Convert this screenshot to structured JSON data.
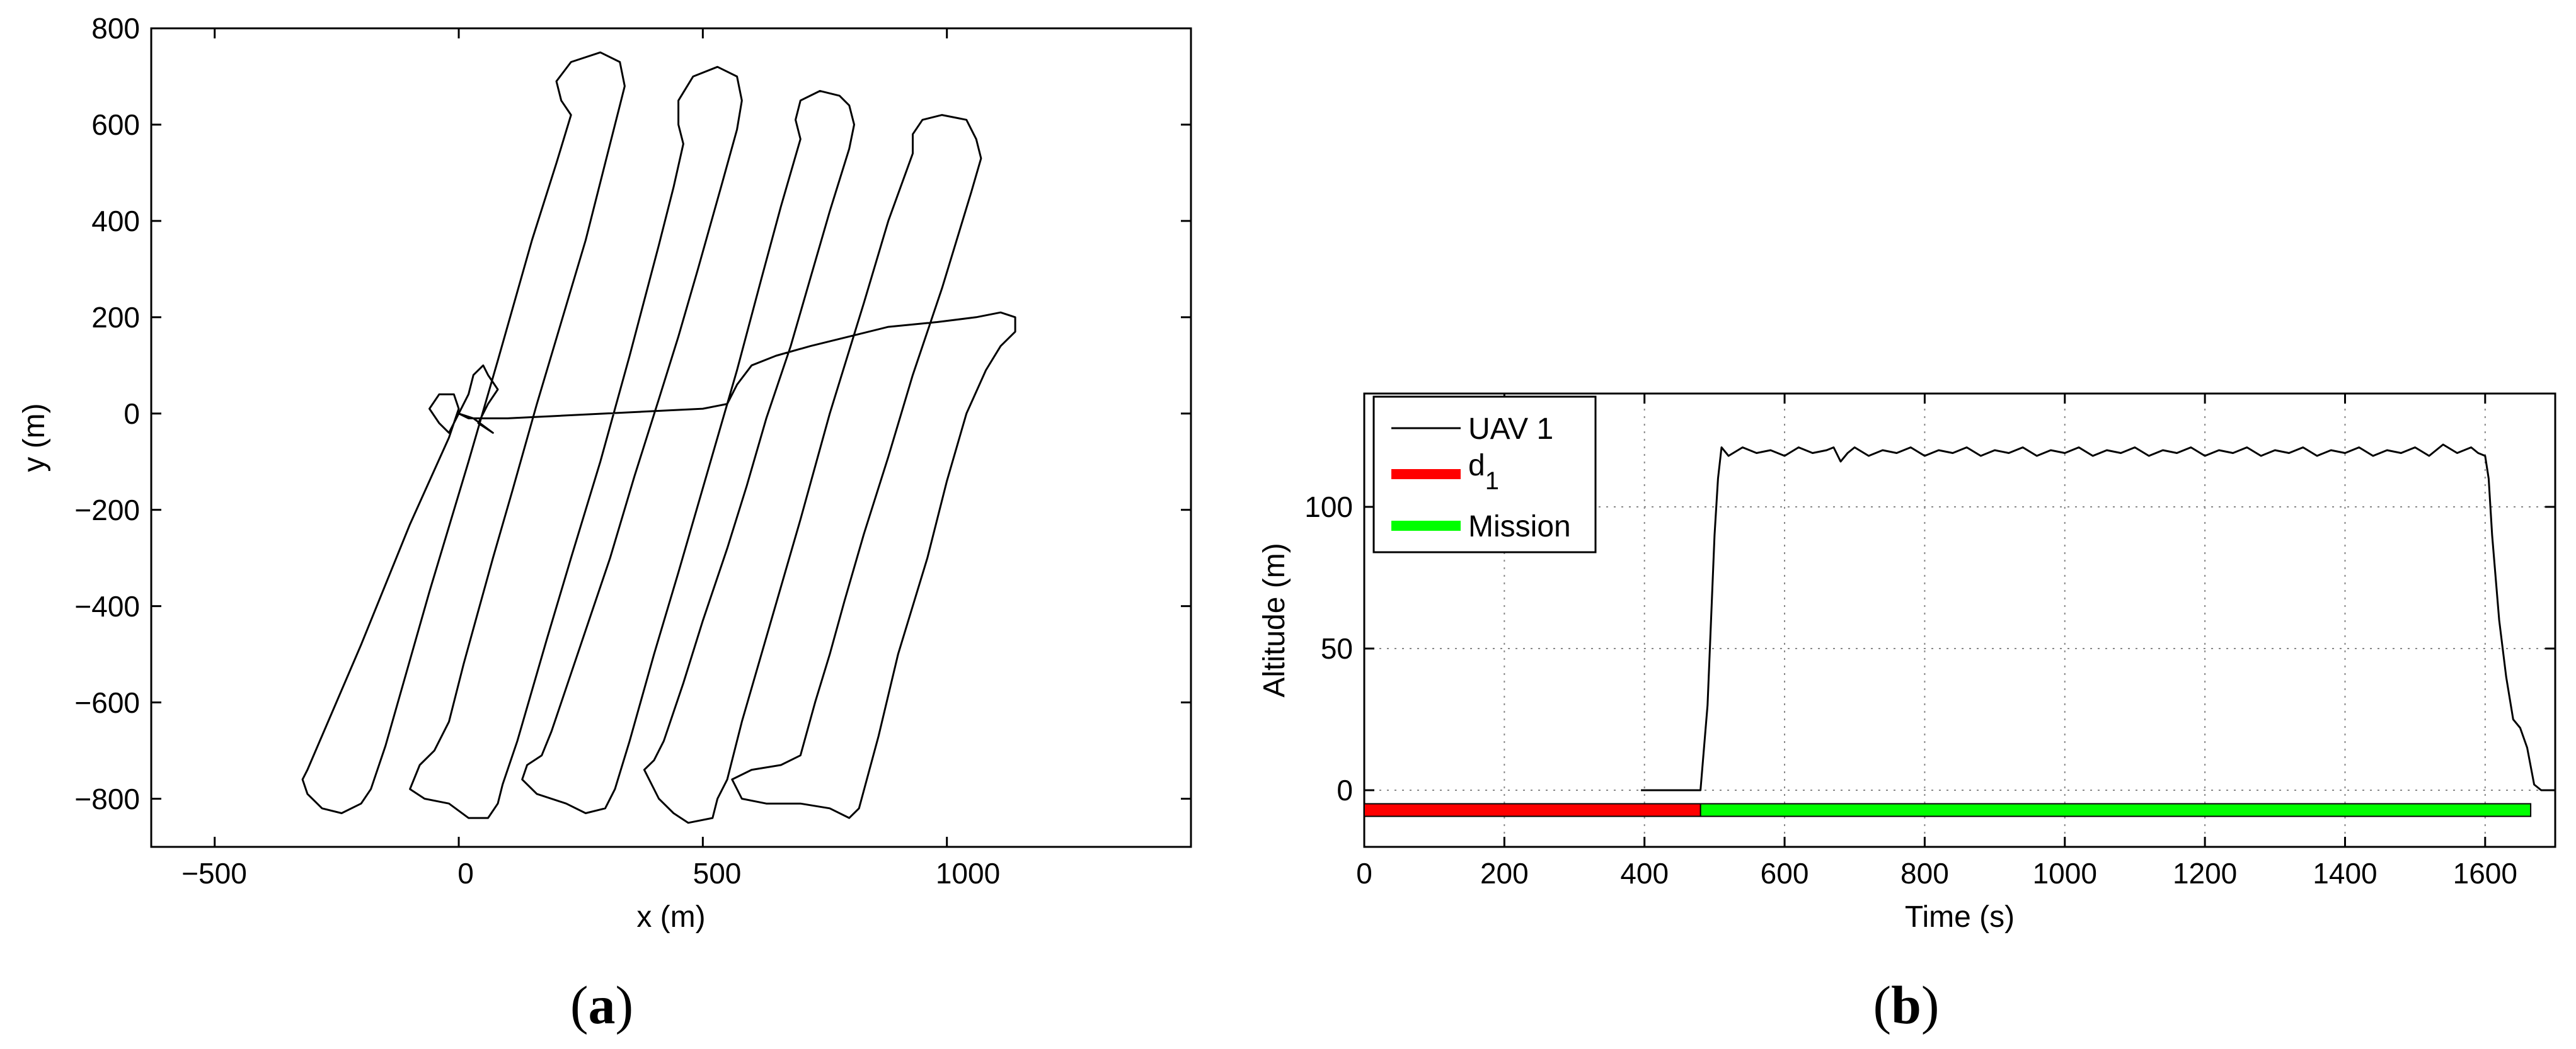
{
  "chart_data": [
    {
      "panel_label": "(a)",
      "panel_letter": "a",
      "type": "line",
      "xlabel": "x (m)",
      "ylabel": "y (m)",
      "xlim": [
        -630,
        1500
      ],
      "ylim": [
        -900,
        800
      ],
      "x_ticks": [
        -500,
        0,
        500,
        1000
      ],
      "y_ticks": [
        800,
        600,
        400,
        200,
        0,
        -200,
        -400,
        -600,
        -800
      ],
      "x_tick_labels": [
        "−500",
        "0",
        "500",
        "1000"
      ],
      "y_tick_labels": [
        "800",
        "600",
        "400",
        "200",
        "0",
        "−200",
        "−400",
        "−600",
        "−800"
      ],
      "grid": false,
      "series": [
        {
          "points": [
            [
              0,
              0
            ],
            [
              30,
              -10
            ],
            [
              70,
              -40
            ],
            [
              40,
              -20
            ],
            [
              60,
              20
            ],
            [
              80,
              50
            ],
            [
              60,
              80
            ],
            [
              50,
              100
            ],
            [
              30,
              80
            ],
            [
              20,
              40
            ],
            [
              0,
              0
            ],
            [
              -20,
              -40
            ],
            [
              -40,
              -20
            ],
            [
              -60,
              10
            ],
            [
              -40,
              40
            ],
            [
              -10,
              40
            ],
            [
              0,
              10
            ],
            [
              -20,
              -50
            ],
            [
              -100,
              -230
            ],
            [
              -200,
              -480
            ],
            [
              -310,
              -740
            ],
            [
              -320,
              -760
            ],
            [
              -310,
              -790
            ],
            [
              -280,
              -820
            ],
            [
              -240,
              -830
            ],
            [
              -200,
              -810
            ],
            [
              -180,
              -780
            ],
            [
              -150,
              -690
            ],
            [
              -60,
              -370
            ],
            [
              20,
              -100
            ],
            [
              80,
              110
            ],
            [
              150,
              360
            ],
            [
              200,
              520
            ],
            [
              230,
              620
            ],
            [
              210,
              650
            ],
            [
              200,
              690
            ],
            [
              230,
              730
            ],
            [
              290,
              750
            ],
            [
              330,
              730
            ],
            [
              340,
              680
            ],
            [
              330,
              640
            ],
            [
              300,
              520
            ],
            [
              260,
              360
            ],
            [
              210,
              190
            ],
            [
              160,
              20
            ],
            [
              110,
              -160
            ],
            [
              70,
              -300
            ],
            [
              40,
              -410
            ],
            [
              10,
              -520
            ],
            [
              -20,
              -640
            ],
            [
              -50,
              -700
            ],
            [
              -80,
              -730
            ],
            [
              -100,
              -780
            ],
            [
              -70,
              -800
            ],
            [
              -20,
              -810
            ],
            [
              20,
              -840
            ],
            [
              60,
              -840
            ],
            [
              80,
              -810
            ],
            [
              90,
              -770
            ],
            [
              120,
              -680
            ],
            [
              180,
              -470
            ],
            [
              230,
              -300
            ],
            [
              290,
              -100
            ],
            [
              350,
              120
            ],
            [
              410,
              350
            ],
            [
              440,
              470
            ],
            [
              460,
              560
            ],
            [
              450,
              600
            ],
            [
              450,
              650
            ],
            [
              480,
              700
            ],
            [
              530,
              720
            ],
            [
              570,
              700
            ],
            [
              580,
              650
            ],
            [
              570,
              590
            ],
            [
              540,
              480
            ],
            [
              490,
              300
            ],
            [
              450,
              160
            ],
            [
              410,
              30
            ],
            [
              360,
              -130
            ],
            [
              310,
              -300
            ],
            [
              270,
              -420
            ],
            [
              230,
              -540
            ],
            [
              190,
              -660
            ],
            [
              170,
              -710
            ],
            [
              140,
              -730
            ],
            [
              130,
              -760
            ],
            [
              160,
              -790
            ],
            [
              220,
              -810
            ],
            [
              260,
              -830
            ],
            [
              300,
              -820
            ],
            [
              320,
              -780
            ],
            [
              350,
              -680
            ],
            [
              400,
              -500
            ],
            [
              450,
              -330
            ],
            [
              510,
              -120
            ],
            [
              570,
              90
            ],
            [
              620,
              280
            ],
            [
              660,
              430
            ],
            [
              700,
              570
            ],
            [
              690,
              610
            ],
            [
              700,
              650
            ],
            [
              740,
              670
            ],
            [
              780,
              660
            ],
            [
              800,
              640
            ],
            [
              810,
              600
            ],
            [
              800,
              550
            ],
            [
              760,
              420
            ],
            [
              720,
              280
            ],
            [
              680,
              140
            ],
            [
              630,
              -10
            ],
            [
              590,
              -150
            ],
            [
              550,
              -280
            ],
            [
              500,
              -430
            ],
            [
              460,
              -560
            ],
            [
              420,
              -680
            ],
            [
              400,
              -720
            ],
            [
              380,
              -740
            ],
            [
              410,
              -800
            ],
            [
              440,
              -830
            ],
            [
              470,
              -850
            ],
            [
              520,
              -840
            ],
            [
              530,
              -800
            ],
            [
              550,
              -760
            ],
            [
              580,
              -640
            ],
            [
              640,
              -430
            ],
            [
              700,
              -220
            ],
            [
              760,
              0
            ],
            [
              830,
              230
            ],
            [
              880,
              400
            ],
            [
              930,
              540
            ],
            [
              930,
              580
            ],
            [
              950,
              610
            ],
            [
              990,
              620
            ],
            [
              1040,
              610
            ],
            [
              1060,
              570
            ],
            [
              1070,
              530
            ],
            [
              1050,
              460
            ],
            [
              990,
              260
            ],
            [
              930,
              80
            ],
            [
              880,
              -90
            ],
            [
              830,
              -250
            ],
            [
              790,
              -390
            ],
            [
              760,
              -500
            ],
            [
              730,
              -600
            ],
            [
              700,
              -710
            ],
            [
              660,
              -730
            ],
            [
              600,
              -740
            ],
            [
              560,
              -760
            ],
            [
              580,
              -800
            ],
            [
              630,
              -810
            ],
            [
              700,
              -810
            ],
            [
              760,
              -820
            ],
            [
              800,
              -840
            ],
            [
              820,
              -820
            ],
            [
              860,
              -670
            ],
            [
              900,
              -500
            ],
            [
              960,
              -300
            ],
            [
              1000,
              -140
            ],
            [
              1040,
              0
            ],
            [
              1080,
              90
            ],
            [
              1110,
              140
            ],
            [
              1140,
              170
            ],
            [
              1140,
              200
            ],
            [
              1110,
              210
            ],
            [
              1060,
              200
            ],
            [
              980,
              190
            ],
            [
              880,
              180
            ],
            [
              800,
              160
            ],
            [
              720,
              140
            ],
            [
              650,
              120
            ],
            [
              600,
              100
            ],
            [
              570,
              60
            ],
            [
              550,
              20
            ],
            [
              500,
              10
            ],
            [
              400,
              5
            ],
            [
              300,
              0
            ],
            [
              200,
              -5
            ],
            [
              100,
              -10
            ],
            [
              20,
              -10
            ],
            [
              0,
              0
            ]
          ]
        }
      ]
    },
    {
      "panel_label": "(b)",
      "panel_letter": "b",
      "type": "line",
      "xlabel": "Time (s)",
      "ylabel": "Altitude (m)",
      "xlim": [
        0,
        1700
      ],
      "ylim": [
        -20,
        140
      ],
      "x_ticks": [
        0,
        200,
        400,
        600,
        800,
        1000,
        1200,
        1400,
        1600
      ],
      "y_ticks": [
        0,
        50,
        100
      ],
      "grid": true,
      "legend_position": "top-left",
      "legend": [
        {
          "label": "UAV 1",
          "color": "#000000",
          "kind": "line"
        },
        {
          "label": "d",
          "subscript": "1",
          "color": "#ff0000",
          "kind": "bar"
        },
        {
          "label": "Mission",
          "color": "#00ff00",
          "kind": "bar"
        }
      ],
      "series": [
        {
          "name": "UAV 1",
          "color": "#000000",
          "points": [
            [
              395,
              0
            ],
            [
              480,
              0
            ],
            [
              490,
              30
            ],
            [
              500,
              90
            ],
            [
              505,
              110
            ],
            [
              510,
              121
            ],
            [
              520,
              118
            ],
            [
              540,
              121
            ],
            [
              560,
              119
            ],
            [
              580,
              120
            ],
            [
              600,
              118
            ],
            [
              620,
              121
            ],
            [
              640,
              119
            ],
            [
              660,
              120
            ],
            [
              670,
              121
            ],
            [
              680,
              116
            ],
            [
              690,
              119
            ],
            [
              700,
              121
            ],
            [
              720,
              118
            ],
            [
              740,
              120
            ],
            [
              760,
              119
            ],
            [
              780,
              121
            ],
            [
              800,
              118
            ],
            [
              820,
              120
            ],
            [
              840,
              119
            ],
            [
              860,
              121
            ],
            [
              880,
              118
            ],
            [
              900,
              120
            ],
            [
              920,
              119
            ],
            [
              940,
              121
            ],
            [
              960,
              118
            ],
            [
              980,
              120
            ],
            [
              1000,
              119
            ],
            [
              1020,
              121
            ],
            [
              1040,
              118
            ],
            [
              1060,
              120
            ],
            [
              1080,
              119
            ],
            [
              1100,
              121
            ],
            [
              1120,
              118
            ],
            [
              1140,
              120
            ],
            [
              1160,
              119
            ],
            [
              1180,
              121
            ],
            [
              1200,
              118
            ],
            [
              1220,
              120
            ],
            [
              1240,
              119
            ],
            [
              1260,
              121
            ],
            [
              1280,
              118
            ],
            [
              1300,
              120
            ],
            [
              1320,
              119
            ],
            [
              1340,
              121
            ],
            [
              1360,
              118
            ],
            [
              1380,
              120
            ],
            [
              1400,
              119
            ],
            [
              1420,
              121
            ],
            [
              1440,
              118
            ],
            [
              1460,
              120
            ],
            [
              1480,
              119
            ],
            [
              1500,
              121
            ],
            [
              1520,
              118
            ],
            [
              1540,
              122
            ],
            [
              1560,
              119
            ],
            [
              1580,
              121
            ],
            [
              1590,
              119
            ],
            [
              1600,
              118
            ],
            [
              1605,
              110
            ],
            [
              1610,
              90
            ],
            [
              1620,
              60
            ],
            [
              1630,
              40
            ],
            [
              1640,
              25
            ],
            [
              1650,
              22
            ],
            [
              1660,
              15
            ],
            [
              1670,
              2
            ],
            [
              1680,
              0
            ],
            [
              1700,
              0
            ]
          ]
        }
      ],
      "bars": [
        {
          "name": "d",
          "subscript": "1",
          "color": "#ff0000",
          "x0": 0,
          "x1": 480,
          "y": -7
        },
        {
          "name": "Mission",
          "color": "#00ff00",
          "x0": 480,
          "x1": 1665,
          "y": -7
        }
      ]
    }
  ]
}
